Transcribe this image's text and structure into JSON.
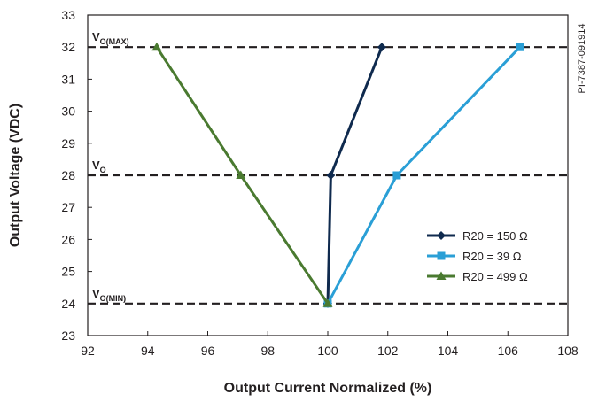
{
  "chart_data": {
    "type": "line",
    "xlabel": "Output Current Normalized (%)",
    "ylabel": "Output Voltage (VDC)",
    "xlim": [
      92,
      108
    ],
    "ylim": [
      23,
      33
    ],
    "xticks": [
      92,
      94,
      96,
      98,
      100,
      102,
      104,
      106,
      108
    ],
    "yticks": [
      23,
      24,
      25,
      26,
      27,
      28,
      29,
      30,
      31,
      32,
      33
    ],
    "grid": false,
    "legend_position": "bottom-right",
    "figure_code": "PI-7387-091914",
    "reference_lines": [
      {
        "y": 32,
        "label": "V",
        "subscript": "O(MAX)"
      },
      {
        "y": 28,
        "label": "V",
        "subscript": "O"
      },
      {
        "y": 24,
        "label": "V",
        "subscript": "O(MIN)"
      }
    ],
    "series": [
      {
        "name": "R20 = 150 Ω",
        "color": "#0f2a4e",
        "marker": "diamond",
        "x": [
          100.0,
          100.1,
          101.8
        ],
        "y": [
          24,
          28,
          32
        ]
      },
      {
        "name": "R20 = 39 Ω",
        "color": "#2a9fd6",
        "marker": "square",
        "x": [
          100.0,
          102.3,
          106.4
        ],
        "y": [
          24,
          28,
          32
        ]
      },
      {
        "name": "R20 = 499 Ω",
        "color": "#4a7a30",
        "marker": "triangle",
        "x": [
          100.0,
          97.1,
          94.3
        ],
        "y": [
          24,
          28,
          32
        ]
      }
    ]
  }
}
